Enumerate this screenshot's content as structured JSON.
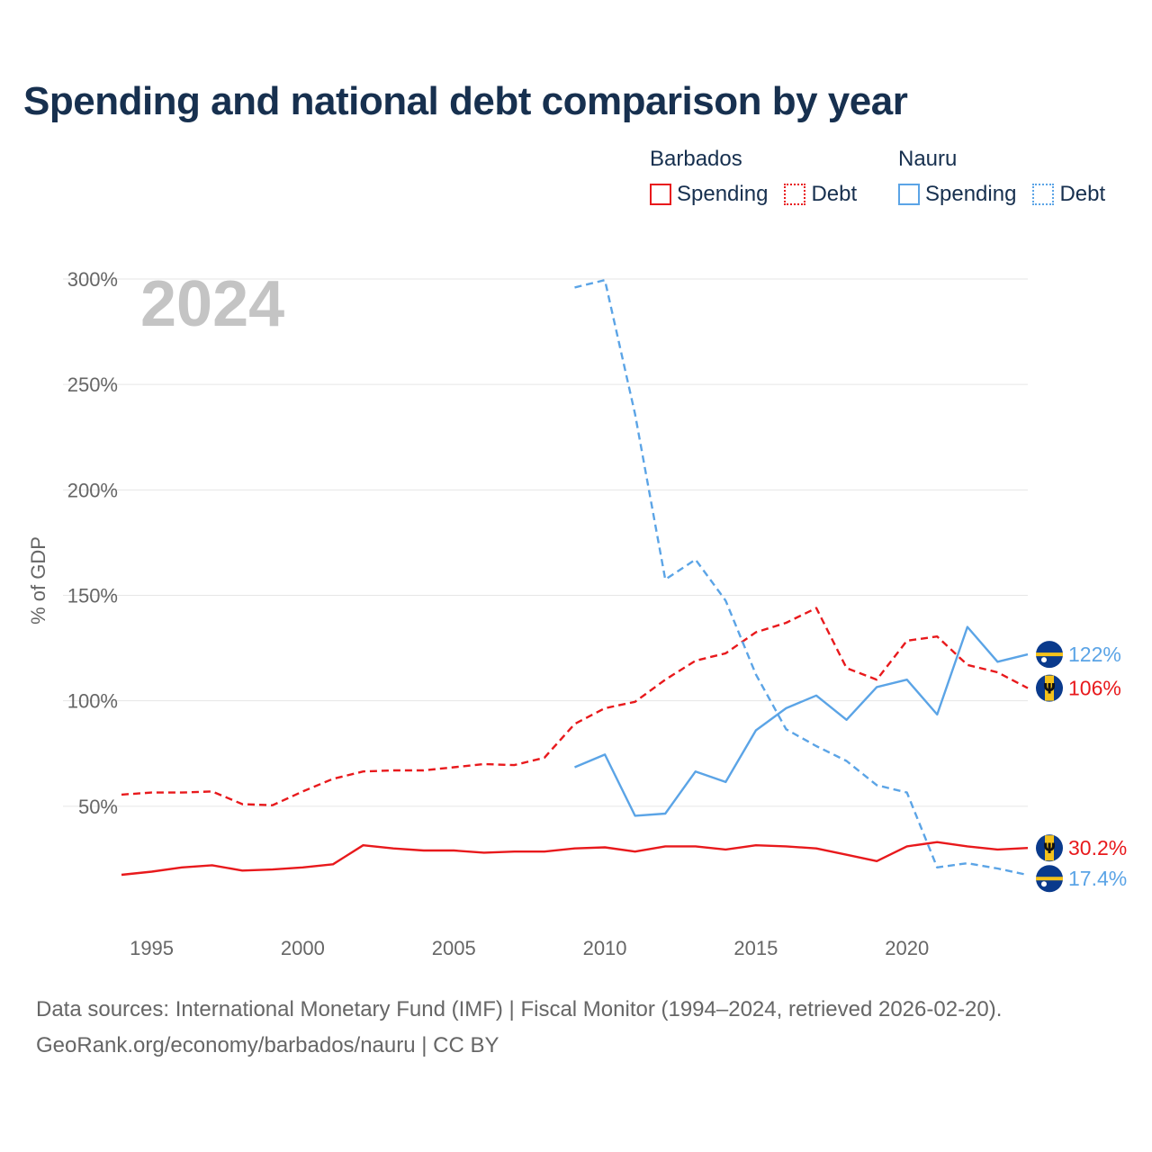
{
  "title": "Spending and national debt comparison by year",
  "legend": {
    "groups": [
      {
        "country": "Barbados",
        "color": "#e8191c",
        "items": [
          {
            "label": "Spending",
            "style": "solid"
          },
          {
            "label": "Debt",
            "style": "dotted"
          }
        ]
      },
      {
        "country": "Nauru",
        "color": "#5ba4e6",
        "items": [
          {
            "label": "Spending",
            "style": "solid"
          },
          {
            "label": "Debt",
            "style": "dotted"
          }
        ]
      }
    ]
  },
  "chart_data": {
    "type": "line",
    "year_label": "2024",
    "ylabel": "% of GDP",
    "xlim": [
      1994,
      2024
    ],
    "ylim": [
      0,
      300
    ],
    "x_ticks": [
      1995,
      2000,
      2005,
      2010,
      2015,
      2020
    ],
    "y_ticks": [
      50,
      100,
      150,
      200,
      250,
      300
    ],
    "y_tick_labels": [
      "50%",
      "100%",
      "150%",
      "200%",
      "250%",
      "300%"
    ],
    "series": [
      {
        "name": "Barbados Spending",
        "country": "barbados",
        "color": "#e8191c",
        "dash": false,
        "x": [
          1994,
          1995,
          1996,
          1997,
          1998,
          1999,
          2000,
          2001,
          2002,
          2003,
          2004,
          2005,
          2006,
          2007,
          2008,
          2009,
          2010,
          2011,
          2012,
          2013,
          2014,
          2015,
          2016,
          2017,
          2018,
          2019,
          2020,
          2021,
          2022,
          2023,
          2024
        ],
        "y": [
          17.5,
          19.0,
          21.0,
          22.0,
          19.5,
          20.0,
          21.0,
          22.5,
          31.5,
          30.0,
          29.0,
          29.0,
          28.0,
          28.5,
          28.5,
          30.0,
          30.5,
          28.5,
          31.0,
          31.0,
          29.5,
          31.5,
          31.0,
          30.0,
          27.0,
          24.0,
          31.0,
          33.0,
          31.0,
          29.5,
          30.2
        ],
        "end_label": "30.2%"
      },
      {
        "name": "Barbados Debt",
        "country": "barbados",
        "color": "#e8191c",
        "dash": true,
        "x": [
          1994,
          1995,
          1996,
          1997,
          1998,
          1999,
          2000,
          2001,
          2002,
          2003,
          2004,
          2005,
          2006,
          2007,
          2008,
          2009,
          2010,
          2011,
          2012,
          2013,
          2014,
          2015,
          2016,
          2017,
          2018,
          2019,
          2020,
          2021,
          2022,
          2023,
          2024
        ],
        "y": [
          55.5,
          56.5,
          56.5,
          57.0,
          51.0,
          50.5,
          57.0,
          63.0,
          66.5,
          67.0,
          67.0,
          68.5,
          70.0,
          69.5,
          73.0,
          89.0,
          96.5,
          99.5,
          110.0,
          119.0,
          122.5,
          132.5,
          137.0,
          144.0,
          115.5,
          110.0,
          128.5,
          130.5,
          117.0,
          113.5,
          106.0
        ],
        "end_label": "106%"
      },
      {
        "name": "Nauru Spending",
        "country": "nauru",
        "color": "#5ba4e6",
        "dash": false,
        "x": [
          2009,
          2010,
          2011,
          2012,
          2013,
          2014,
          2015,
          2016,
          2017,
          2018,
          2019,
          2020,
          2021,
          2022,
          2023,
          2024
        ],
        "y": [
          68.5,
          74.5,
          45.5,
          46.5,
          66.5,
          61.5,
          86.0,
          96.5,
          102.5,
          91.0,
          106.5,
          110.0,
          93.5,
          135.0,
          118.5,
          122.0
        ],
        "end_label": "122%"
      },
      {
        "name": "Nauru Debt",
        "country": "nauru",
        "color": "#5ba4e6",
        "dash": true,
        "x": [
          2009,
          2010,
          2011,
          2012,
          2013,
          2014,
          2015,
          2016,
          2017,
          2018,
          2019,
          2020,
          2021,
          2022,
          2023,
          2024
        ],
        "y": [
          296.0,
          299.5,
          236.0,
          157.5,
          167.0,
          147.5,
          112.5,
          86.5,
          78.5,
          71.5,
          60.0,
          56.5,
          21.0,
          23.0,
          20.5,
          17.4
        ],
        "end_label": "17.4%"
      }
    ]
  },
  "footer": {
    "source": "Data sources: International Monetary Fund (IMF) | Fiscal Monitor (1994–2024, retrieved 2026-02-20).",
    "credit": "GeoRank.org/economy/barbados/nauru | CC BY"
  }
}
